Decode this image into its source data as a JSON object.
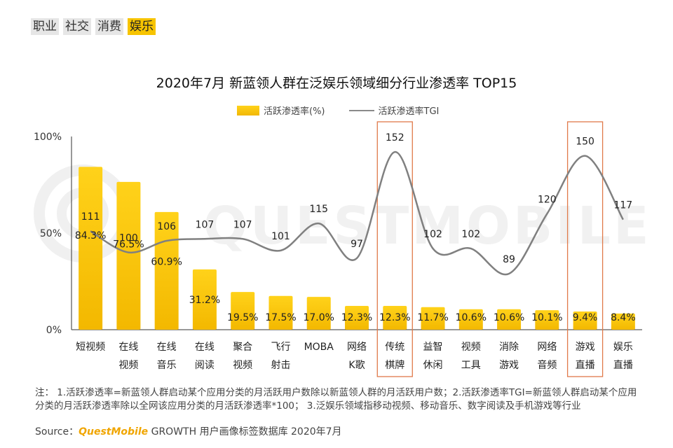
{
  "tags": [
    "职业",
    "社交",
    "消费",
    "娱乐"
  ],
  "active_tag": "娱乐",
  "chart_data": {
    "type": "bar",
    "title": "2020年7月 新蓝领人群在泛娱乐领域细分行业渗透率 TOP15",
    "categories": [
      [
        "短视频"
      ],
      [
        "在线",
        "视频"
      ],
      [
        "在线",
        "音乐"
      ],
      [
        "在线",
        "阅读"
      ],
      [
        "聚合",
        "视频"
      ],
      [
        "飞行",
        "射击"
      ],
      [
        "MOBA"
      ],
      [
        "网络",
        "K歌"
      ],
      [
        "传统",
        "棋牌"
      ],
      [
        "益智",
        "休闲"
      ],
      [
        "视频",
        "工具"
      ],
      [
        "消除",
        "游戏"
      ],
      [
        "网络",
        "音频"
      ],
      [
        "游戏",
        "直播"
      ],
      [
        "娱乐",
        "直播"
      ]
    ],
    "series": [
      {
        "name": "活跃渗透率(%)",
        "type": "bar",
        "color": "#f8c100",
        "values": [
          84.3,
          76.5,
          60.9,
          31.2,
          19.5,
          17.5,
          17.0,
          12.3,
          12.3,
          11.7,
          10.6,
          10.6,
          10.1,
          9.4,
          8.4
        ],
        "labels": [
          "84.3%",
          "76.5%",
          "60.9%",
          "31.2%",
          "19.5%",
          "17.5%",
          "17.0%",
          "12.3%",
          "12.3%",
          "11.7%",
          "10.6%",
          "10.6%",
          "10.1%",
          "9.4%",
          "8.4%"
        ]
      },
      {
        "name": "活跃渗透率TGI",
        "type": "line",
        "color": "#808080",
        "values": [
          111,
          100,
          106,
          107,
          107,
          101,
          115,
          97,
          152,
          102,
          102,
          89,
          120,
          150,
          117
        ]
      }
    ],
    "yticks": [
      "100%",
      "50%",
      "0%"
    ],
    "ylim": [
      0,
      100
    ],
    "tgi_range": [
      60,
      160
    ],
    "highlight_categories": [
      8,
      13
    ],
    "watermark": "QUESTMOBILE"
  },
  "note": "注：  1.活跃渗透率=新蓝领人群启动某个应用分类的月活跃用户数除以新蓝领人群的月活跃用户数；2.活跃渗透率TGI=新蓝领人群启动某个应用分类的月活跃渗透率除以全网该应用分类的月活跃渗透率*100；  3.泛娱乐领域指移动视频、移动音乐、数字阅读及手机游戏等行业",
  "source": {
    "label": "Source：",
    "brand": "QuestMobile",
    "rest": " GROWTH 用户画像标签数据库 2020年7月"
  }
}
